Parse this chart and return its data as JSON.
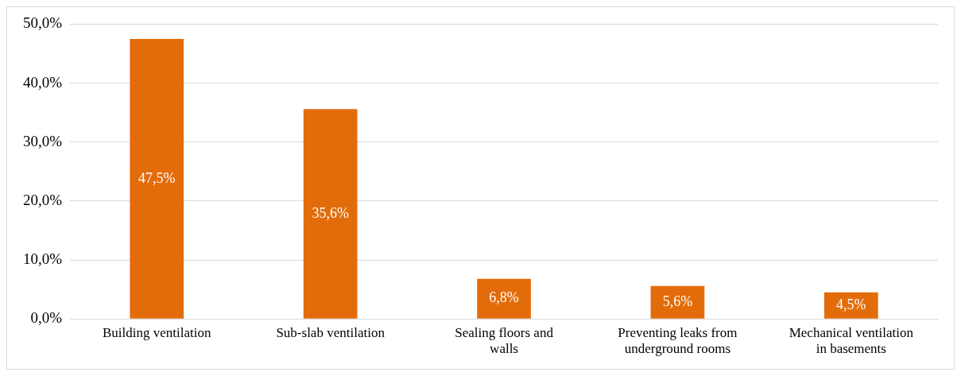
{
  "chart_data": {
    "type": "bar",
    "categories": [
      "Building ventilation",
      "Sub-slab ventilation",
      "Sealing floors and walls",
      "Preventing leaks from underground rooms",
      "Mechanical ventilation in basements"
    ],
    "values": [
      47.5,
      35.6,
      6.8,
      5.6,
      4.5
    ],
    "value_labels": [
      "47,5%",
      "35,6%",
      "6,8%",
      "5,6%",
      "4,5%"
    ],
    "color": "#e36c0a",
    "ylim": [
      0,
      50
    ],
    "yticks": [
      {
        "value": 0,
        "label": "0,0%"
      },
      {
        "value": 10,
        "label": "10,0%"
      },
      {
        "value": 20,
        "label": "20,0%"
      },
      {
        "value": 30,
        "label": "30,0%"
      },
      {
        "value": 40,
        "label": "40,0%"
      },
      {
        "value": 50,
        "label": "50,0%"
      }
    ],
    "grid": "y",
    "legend": false
  }
}
